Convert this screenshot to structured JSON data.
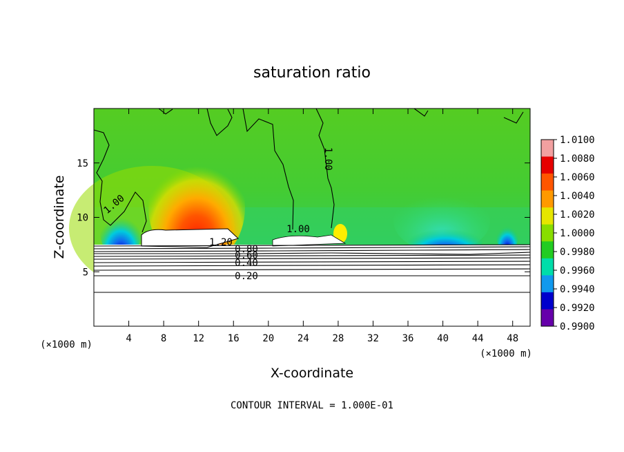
{
  "chart_data": {
    "type": "heatmap",
    "title": "saturation ratio",
    "xlabel": "X-coordinate",
    "ylabel": "Z-coordinate",
    "x_unit": "(×1000 m)",
    "y_unit": "(×1000 m)",
    "xlim": [
      0,
      50
    ],
    "ylim": [
      0,
      20
    ],
    "x_ticks": [
      4,
      8,
      12,
      16,
      20,
      24,
      28,
      32,
      36,
      40,
      44,
      48
    ],
    "y_ticks": [
      5,
      10,
      15
    ],
    "colorbar": {
      "levels": [
        "1.0100",
        "1.0080",
        "1.0060",
        "1.0040",
        "1.0020",
        "1.0000",
        "0.9980",
        "0.9960",
        "0.9940",
        "0.9920",
        "0.9900"
      ],
      "colors": [
        "#f2a0a0",
        "#e60000",
        "#ff5500",
        "#ff9900",
        "#e6e600",
        "#88dd00",
        "#22cc22",
        "#00ddaa",
        "#1199ee",
        "#0000cc",
        "#6600aa"
      ]
    },
    "contour_labels": [
      "1.00",
      "1.00",
      "1.00",
      "1.20",
      "0.80",
      "0.60",
      "0.40",
      "0.20"
    ],
    "footer": "CONTOUR INTERVAL = 1.000E-01"
  }
}
